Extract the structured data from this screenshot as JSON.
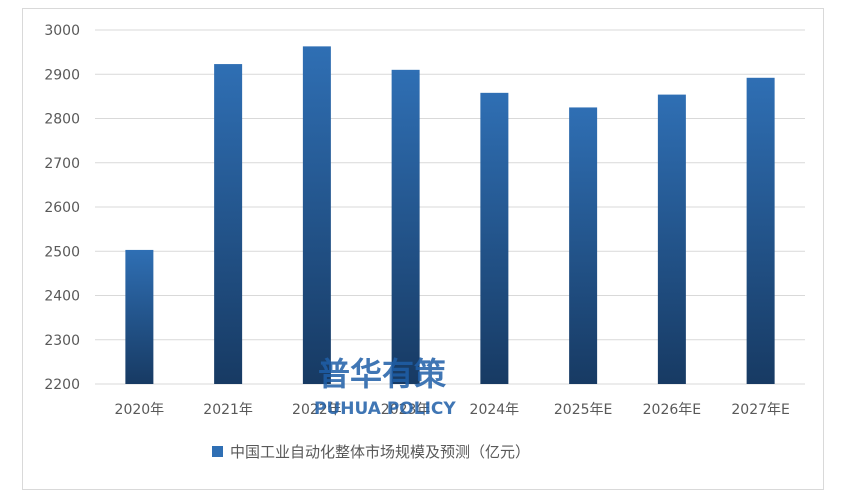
{
  "chart_data": {
    "type": "bar",
    "categories": [
      "2020年",
      "2021年",
      "2022年",
      "2023年",
      "2024年",
      "2025年E",
      "2026年E",
      "2027年E"
    ],
    "series": [
      {
        "name": "中国工业自动化整体市场规模及预测（亿元）",
        "values": [
          2503,
          2923,
          2963,
          2910,
          2858,
          2825,
          2854,
          2892
        ]
      }
    ],
    "ylim": [
      2200,
      3000
    ],
    "yticks": [
      2200,
      2300,
      2400,
      2500,
      2600,
      2700,
      2800,
      2900,
      3000
    ],
    "grid": true,
    "legend_position": "bottom",
    "bar_color_top": "#2f6fb4",
    "bar_color_bottom": "#173a63"
  },
  "watermark": {
    "cn": "普华有策",
    "en": "PUHUA POLICY"
  }
}
